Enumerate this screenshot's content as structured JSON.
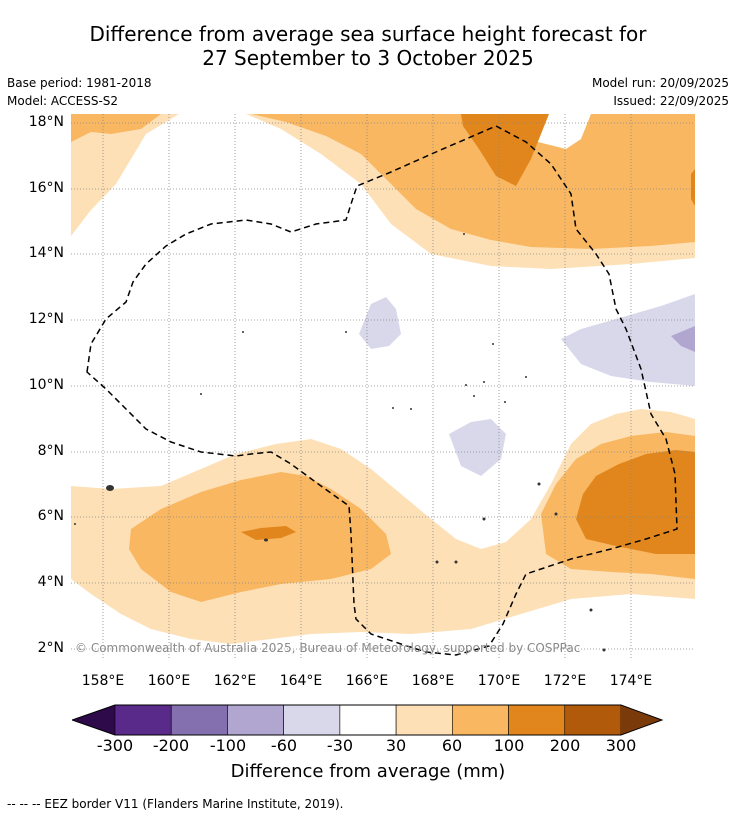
{
  "title": {
    "line1": "Difference from average sea surface height forecast for",
    "line2": "27 September to 3 October 2025"
  },
  "meta": {
    "base_period": "Base period: 1981-2018",
    "model": "Model: ACCESS-S2",
    "model_run": "Model run: 20/09/2025",
    "issued": "Issued: 22/09/2025"
  },
  "map": {
    "copyright": "© Commonwealth of Australia 2025, Bureau of Meteorology, supported by COSPPac",
    "lat_labels": [
      "18°N",
      "16°N",
      "14°N",
      "12°N",
      "10°N",
      "8°N",
      "6°N",
      "4°N",
      "2°N"
    ],
    "lon_labels": [
      "158°E",
      "160°E",
      "162°E",
      "164°E",
      "166°E",
      "168°E",
      "170°E",
      "172°E",
      "174°E"
    ]
  },
  "colorbar": {
    "ticks": [
      "-300",
      "-200",
      "-100",
      "-60",
      "-30",
      "30",
      "60",
      "100",
      "200",
      "300"
    ],
    "colors": [
      "#5a2a8a",
      "#8470ae",
      "#b0a6d0",
      "#d9d8eb",
      "#ffffff",
      "#fde0b6",
      "#f9b761",
      "#e0861c",
      "#b25a0c"
    ],
    "under_color": "#2e0a4a",
    "over_color": "#7a3a0a",
    "title": "Difference from average (mm)"
  },
  "footer": {
    "eez_note": "--  --  -- EEZ border V11 (Flanders Marine Institute, 2019)."
  }
}
